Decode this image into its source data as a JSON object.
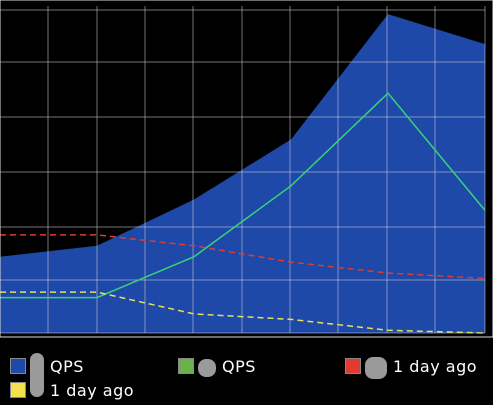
{
  "chart_data": {
    "type": "area",
    "x": [
      0,
      1,
      2,
      3,
      4,
      5
    ],
    "ylim": [
      0,
      12
    ],
    "xlim": [
      0,
      5
    ],
    "grid": true,
    "legend_placement": "bottom",
    "series": [
      {
        "name": "QPS",
        "kind": "area",
        "color": "#1f49a8",
        "values": [
          2.8,
          3.2,
          4.9,
          7.1,
          11.7,
          10.6
        ]
      },
      {
        "name": "QPS",
        "kind": "line",
        "color": "#38d27a",
        "dash": "solid",
        "values": [
          1.3,
          1.3,
          2.8,
          5.4,
          8.8,
          4.5
        ]
      },
      {
        "name": "1 day ago",
        "kind": "line",
        "color": "#e03b2e",
        "dash": "dashed",
        "values": [
          3.6,
          3.6,
          3.2,
          2.6,
          2.2,
          2.0
        ]
      },
      {
        "name": "1 day ago",
        "kind": "line",
        "color": "#e6e05a",
        "dash": "dashed",
        "values": [
          1.5,
          1.5,
          0.7,
          0.5,
          0.1,
          0.0
        ]
      }
    ]
  },
  "legend": {
    "items": [
      {
        "label": "QPS",
        "swatch": "#1f49a8",
        "icon": "tall-gray-blob-icon"
      },
      {
        "label": "QPS",
        "swatch": "#6ab04c",
        "icon": "round-gray-blob-icon"
      },
      {
        "label": "1 day ago",
        "swatch": "#e03b2e",
        "icon": "round-gray-blob-icon"
      },
      {
        "label": "1 day ago",
        "swatch": "#f2e14c",
        "icon": "tall-gray-blob-icon"
      }
    ]
  }
}
